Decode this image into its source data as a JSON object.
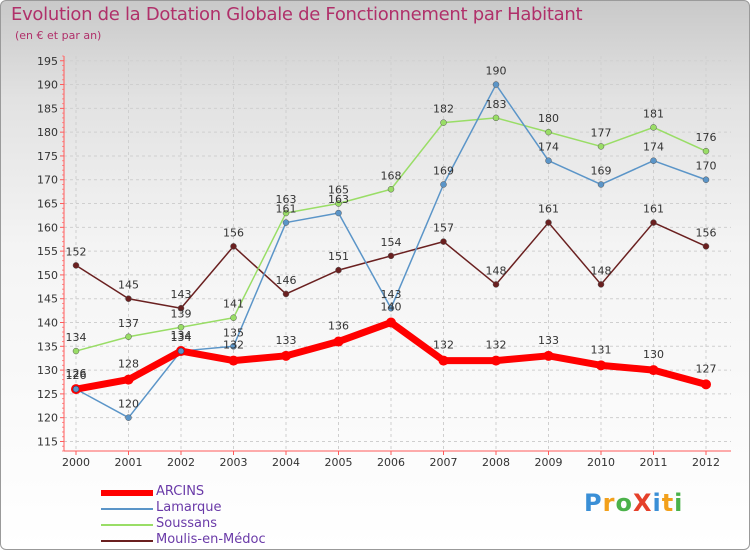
{
  "title": "Evolution de la Dotation Globale de Fonctionnement par Habitant",
  "subtitle": "(en € et par an)",
  "logo_text": "ProXiti",
  "logo_colors": [
    "#3a8fd6",
    "#f2a01b",
    "#4bb24a",
    "#e5402a",
    "#3a8fd6",
    "#f2a01b",
    "#4bb24a"
  ],
  "chart_data": {
    "type": "line",
    "x": [
      "2000",
      "2001",
      "2002",
      "2003",
      "2004",
      "2005",
      "2006",
      "2007",
      "2008",
      "2009",
      "2010",
      "2011",
      "2012"
    ],
    "ylim": [
      113,
      196
    ],
    "yticks": [
      115,
      120,
      125,
      130,
      135,
      140,
      145,
      150,
      155,
      160,
      165,
      170,
      175,
      180,
      185,
      190,
      195
    ],
    "grid": true,
    "legend_position": "bottom-left",
    "series": [
      {
        "name": "ARCINS",
        "color": "#ff0000",
        "values": [
          126,
          128,
          134,
          132,
          133,
          136,
          140,
          132,
          132,
          133,
          131,
          130,
          127
        ]
      },
      {
        "name": "Lamarque",
        "color": "#5b95c8",
        "values": [
          126,
          120,
          134,
          135,
          161,
          163,
          143,
          169,
          190,
          174,
          169,
          174,
          170
        ]
      },
      {
        "name": "Soussans",
        "color": "#99dd66",
        "values": [
          134,
          137,
          139,
          141,
          163,
          165,
          168,
          182,
          183,
          180,
          177,
          181,
          176
        ]
      },
      {
        "name": "Moulis-en-Médoc",
        "color": "#6a2020",
        "values": [
          152,
          145,
          143,
          156,
          146,
          151,
          154,
          157,
          148,
          161,
          148,
          161,
          156
        ]
      }
    ]
  }
}
